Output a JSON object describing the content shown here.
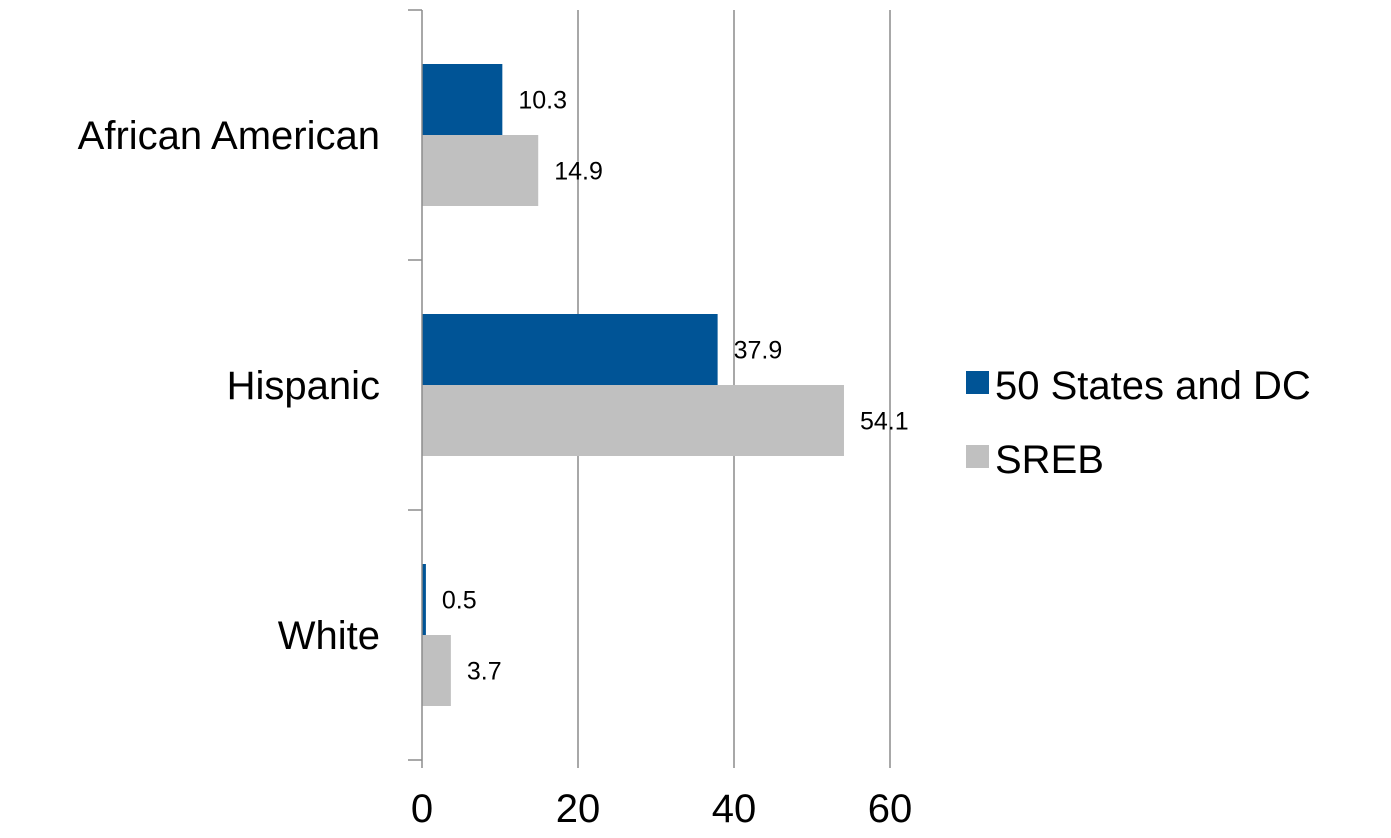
{
  "chart_data": {
    "type": "bar",
    "orientation": "horizontal",
    "categories": [
      "African American",
      "Hispanic",
      "White"
    ],
    "series": [
      {
        "name": "50 States and DC",
        "color": "#005496",
        "values": [
          10.3,
          37.9,
          0.5
        ]
      },
      {
        "name": "SREB",
        "color": "#c0c0c0",
        "values": [
          14.9,
          54.1,
          3.7
        ]
      }
    ],
    "xlim": [
      0,
      60
    ],
    "xticks": [
      0,
      20,
      40,
      60
    ],
    "grid": true,
    "legend_position": "right",
    "data_labels": true
  }
}
